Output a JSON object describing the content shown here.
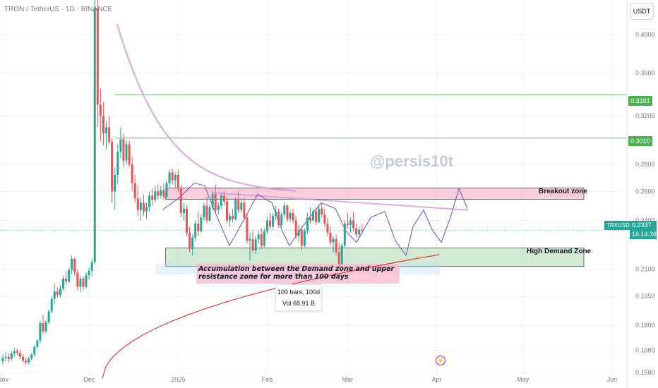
{
  "header": {
    "symbol": "TRON / TetherUS · 1D · BINANCE",
    "currency": "USDT"
  },
  "watermark": "@persis10t",
  "zones": {
    "breakout": {
      "label": "Breakout zone",
      "low": 0.2545,
      "high": 0.2625,
      "start": 52,
      "end": 169
    },
    "demand": {
      "label": "High Demand Zone",
      "low": 0.2115,
      "high": 0.2225,
      "start": 52,
      "end": 169
    }
  },
  "levels": [
    {
      "value": 0.3391,
      "label": "0.3391"
    },
    {
      "value": 0.301,
      "label": "0.3010"
    }
  ],
  "current": {
    "ticker": "TRXUSDT",
    "price": "0.2337",
    "countdown": "16:14:36",
    "value": 0.2337
  },
  "annotation": {
    "text": "Accumulation between the Demand zone and upper resistance zone for more than 100 days"
  },
  "measure": {
    "bars": "100 bars, 100d",
    "vol": "Vol 68.91 B"
  },
  "chart_data": {
    "type": "candlestick",
    "x_axis": {
      "ticks": [
        "Nov",
        "Dec",
        "2025",
        "Feb",
        "Mar",
        "Apr",
        "May",
        "Jun"
      ],
      "positions": [
        0,
        30,
        61,
        92,
        120,
        151,
        181,
        212
      ]
    },
    "y_axis": {
      "scale": "log",
      "range": [
        0.155,
        0.44
      ],
      "ticks": [
        0.4,
        0.36,
        0.32,
        0.28,
        0.26,
        0.24,
        0.21,
        0.195,
        0.18,
        0.168,
        0.158
      ]
    },
    "ohlc": [
      [
        0.163,
        0.166,
        0.1615,
        0.1645
      ],
      [
        0.1645,
        0.167,
        0.163,
        0.165
      ],
      [
        0.165,
        0.1665,
        0.1625,
        0.164
      ],
      [
        0.164,
        0.1675,
        0.1632,
        0.1665
      ],
      [
        0.1665,
        0.169,
        0.165,
        0.1675
      ],
      [
        0.1675,
        0.169,
        0.1655,
        0.1668
      ],
      [
        0.1668,
        0.168,
        0.164,
        0.165
      ],
      [
        0.165,
        0.1662,
        0.1625,
        0.1632
      ],
      [
        0.1632,
        0.1645,
        0.1615,
        0.1625
      ],
      [
        0.1625,
        0.165,
        0.1616,
        0.1642
      ],
      [
        0.1642,
        0.1668,
        0.1634,
        0.166
      ],
      [
        0.166,
        0.1702,
        0.1651,
        0.1695
      ],
      [
        0.1695,
        0.1735,
        0.1686,
        0.1725
      ],
      [
        0.1725,
        0.1822,
        0.1712,
        0.181
      ],
      [
        0.181,
        0.1852,
        0.1755,
        0.177
      ],
      [
        0.177,
        0.1825,
        0.176,
        0.1815
      ],
      [
        0.1815,
        0.188,
        0.1805,
        0.187
      ],
      [
        0.187,
        0.195,
        0.186,
        0.1935
      ],
      [
        0.1935,
        0.202,
        0.191,
        0.1975
      ],
      [
        0.1975,
        0.2,
        0.194,
        0.1955
      ],
      [
        0.1955,
        0.201,
        0.194,
        0.199
      ],
      [
        0.199,
        0.206,
        0.198,
        0.2045
      ],
      [
        0.2045,
        0.209,
        0.201,
        0.203
      ],
      [
        0.203,
        0.2105,
        0.202,
        0.2095
      ],
      [
        0.2095,
        0.218,
        0.207,
        0.216
      ],
      [
        0.216,
        0.217,
        0.206,
        0.208
      ],
      [
        0.208,
        0.21,
        0.198,
        0.2
      ],
      [
        0.2,
        0.206,
        0.197,
        0.2045
      ],
      [
        0.2045,
        0.206,
        0.198,
        0.2
      ],
      [
        0.2,
        0.208,
        0.199,
        0.2065
      ],
      [
        0.2065,
        0.211,
        0.204,
        0.209
      ],
      [
        0.209,
        0.216,
        0.206,
        0.214
      ],
      [
        0.214,
        0.442,
        0.213,
        0.43
      ],
      [
        0.43,
        0.445,
        0.31,
        0.33
      ],
      [
        0.33,
        0.345,
        0.298,
        0.32
      ],
      [
        0.32,
        0.332,
        0.295,
        0.305
      ],
      [
        0.305,
        0.315,
        0.292,
        0.31
      ],
      [
        0.31,
        0.32,
        0.296,
        0.298
      ],
      [
        0.298,
        0.301,
        0.252,
        0.26
      ],
      [
        0.26,
        0.278,
        0.247,
        0.272
      ],
      [
        0.272,
        0.296,
        0.265,
        0.29
      ],
      [
        0.29,
        0.31,
        0.285,
        0.3
      ],
      [
        0.3,
        0.305,
        0.278,
        0.283
      ],
      [
        0.283,
        0.299,
        0.28,
        0.296
      ],
      [
        0.296,
        0.299,
        0.278,
        0.28
      ],
      [
        0.28,
        0.286,
        0.26,
        0.266
      ],
      [
        0.266,
        0.272,
        0.252,
        0.255
      ],
      [
        0.255,
        0.264,
        0.243,
        0.247
      ],
      [
        0.247,
        0.256,
        0.24,
        0.252
      ],
      [
        0.252,
        0.258,
        0.243,
        0.246
      ],
      [
        0.246,
        0.252,
        0.241,
        0.249
      ],
      [
        0.249,
        0.26,
        0.246,
        0.257
      ],
      [
        0.257,
        0.262,
        0.25,
        0.254
      ],
      [
        0.254,
        0.264,
        0.252,
        0.26
      ],
      [
        0.26,
        0.265,
        0.254,
        0.257
      ],
      [
        0.257,
        0.264,
        0.255,
        0.261
      ],
      [
        0.261,
        0.266,
        0.254,
        0.256
      ],
      [
        0.256,
        0.268,
        0.254,
        0.266
      ],
      [
        0.266,
        0.276,
        0.263,
        0.274
      ],
      [
        0.274,
        0.277,
        0.265,
        0.268
      ],
      [
        0.268,
        0.274,
        0.262,
        0.272
      ],
      [
        0.272,
        0.276,
        0.26,
        0.262
      ],
      [
        0.262,
        0.265,
        0.242,
        0.245
      ],
      [
        0.245,
        0.252,
        0.24,
        0.248
      ],
      [
        0.248,
        0.25,
        0.23,
        0.232
      ],
      [
        0.232,
        0.236,
        0.22,
        0.222
      ],
      [
        0.222,
        0.231,
        0.218,
        0.229
      ],
      [
        0.229,
        0.24,
        0.227,
        0.238
      ],
      [
        0.238,
        0.246,
        0.23,
        0.233
      ],
      [
        0.233,
        0.244,
        0.232,
        0.242
      ],
      [
        0.242,
        0.252,
        0.24,
        0.25
      ],
      [
        0.25,
        0.256,
        0.238,
        0.24
      ],
      [
        0.24,
        0.251,
        0.239,
        0.249
      ],
      [
        0.249,
        0.26,
        0.247,
        0.258
      ],
      [
        0.258,
        0.265,
        0.245,
        0.247
      ],
      [
        0.247,
        0.252,
        0.244,
        0.25
      ],
      [
        0.25,
        0.259,
        0.248,
        0.257
      ],
      [
        0.257,
        0.26,
        0.25,
        0.253
      ],
      [
        0.253,
        0.256,
        0.238,
        0.24
      ],
      [
        0.24,
        0.245,
        0.236,
        0.243
      ],
      [
        0.243,
        0.248,
        0.239,
        0.241
      ],
      [
        0.241,
        0.256,
        0.24,
        0.254
      ],
      [
        0.254,
        0.26,
        0.245,
        0.247
      ],
      [
        0.247,
        0.255,
        0.245,
        0.252
      ],
      [
        0.252,
        0.256,
        0.24,
        0.242
      ],
      [
        0.242,
        0.245,
        0.225,
        0.227
      ],
      [
        0.227,
        0.232,
        0.215,
        0.228
      ],
      [
        0.228,
        0.233,
        0.22,
        0.221
      ],
      [
        0.221,
        0.23,
        0.219,
        0.228
      ],
      [
        0.228,
        0.233,
        0.225,
        0.231
      ],
      [
        0.231,
        0.235,
        0.222,
        0.224
      ],
      [
        0.224,
        0.235,
        0.223,
        0.233
      ],
      [
        0.233,
        0.242,
        0.231,
        0.24
      ],
      [
        0.24,
        0.245,
        0.234,
        0.236
      ],
      [
        0.236,
        0.245,
        0.235,
        0.243
      ],
      [
        0.243,
        0.25,
        0.24,
        0.246
      ],
      [
        0.246,
        0.248,
        0.235,
        0.237
      ],
      [
        0.237,
        0.246,
        0.236,
        0.244
      ],
      [
        0.244,
        0.252,
        0.242,
        0.25
      ],
      [
        0.25,
        0.251,
        0.239,
        0.241
      ],
      [
        0.241,
        0.247,
        0.239,
        0.245
      ],
      [
        0.245,
        0.248,
        0.238,
        0.24
      ],
      [
        0.24,
        0.243,
        0.228,
        0.23
      ],
      [
        0.23,
        0.237,
        0.226,
        0.234
      ],
      [
        0.234,
        0.236,
        0.221,
        0.224
      ],
      [
        0.224,
        0.235,
        0.223,
        0.233
      ],
      [
        0.233,
        0.245,
        0.231,
        0.242
      ],
      [
        0.242,
        0.249,
        0.238,
        0.24
      ],
      [
        0.24,
        0.248,
        0.239,
        0.246
      ],
      [
        0.246,
        0.249,
        0.237,
        0.239
      ],
      [
        0.239,
        0.25,
        0.238,
        0.248
      ],
      [
        0.248,
        0.252,
        0.242,
        0.244
      ],
      [
        0.244,
        0.248,
        0.236,
        0.238
      ],
      [
        0.238,
        0.242,
        0.23,
        0.232
      ],
      [
        0.232,
        0.236,
        0.224,
        0.226
      ],
      [
        0.226,
        0.23,
        0.22,
        0.228
      ],
      [
        0.228,
        0.231,
        0.218,
        0.22
      ],
      [
        0.22,
        0.226,
        0.211,
        0.213
      ],
      [
        0.213,
        0.226,
        0.212,
        0.224
      ],
      [
        0.224,
        0.24,
        0.223,
        0.238
      ],
      [
        0.238,
        0.245,
        0.235,
        0.237
      ],
      [
        0.237,
        0.242,
        0.232,
        0.24
      ],
      [
        0.24,
        0.246,
        0.233,
        0.235
      ],
      [
        0.235,
        0.238,
        0.229,
        0.231
      ],
      [
        0.231,
        0.236,
        0.229,
        0.234
      ],
      [
        0.234,
        0.238,
        0.232,
        0.2337
      ]
    ],
    "annotations": [
      "Breakout zone",
      "High Demand Zone",
      "0.3391",
      "0.3010"
    ]
  }
}
